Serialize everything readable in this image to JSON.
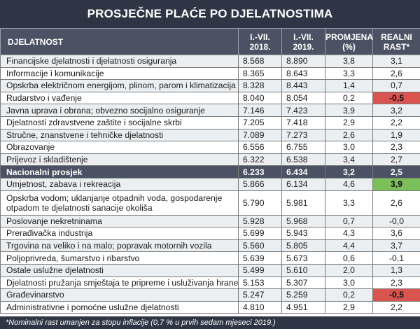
{
  "title": "PROSJEČNE PLAĆE PO DJELATNOSTIMA",
  "headers": {
    "col1": "DJELATNOST",
    "col2_l1": "I.-VII.",
    "col2_l2": "2018.",
    "col3_l1": "I.-VII.",
    "col3_l2": "2019.",
    "col4_l1": "PROMJENA",
    "col4_l2": "(%)",
    "col5_l1": "REALNI",
    "col5_l2": "RAST*"
  },
  "rows": [
    {
      "name": "Financijske djelatnosti i djelatnosti osiguranja",
      "y2018": "8.568",
      "y2019": "8.890",
      "change": "3,8",
      "real": "3,1",
      "style": "odd",
      "flag": ""
    },
    {
      "name": "Informacije i komunikacije",
      "y2018": "8.365",
      "y2019": "8.643",
      "change": "3,3",
      "real": "2,6",
      "style": "even",
      "flag": ""
    },
    {
      "name": "Opskrba električnom energijom, plinom, parom i klimatizacija",
      "y2018": "8.328",
      "y2019": "8.443",
      "change": "1,4",
      "real": "0,7",
      "style": "odd",
      "flag": ""
    },
    {
      "name": "Rudarstvo i vađenje",
      "y2018": "8.040",
      "y2019": "8.054",
      "change": "0,2",
      "real": "-0,5",
      "style": "even",
      "flag": "neg"
    },
    {
      "name": "Javna uprava i obrana; obvezno socijalno osiguranje",
      "y2018": "7.146",
      "y2019": "7.423",
      "change": "3,9",
      "real": "3,2",
      "style": "odd",
      "flag": ""
    },
    {
      "name": "Djelatnosti zdravstvene zaštite i socijalne skrbi",
      "y2018": "7.205",
      "y2019": "7.418",
      "change": "2,9",
      "real": "2,2",
      "style": "even",
      "flag": ""
    },
    {
      "name": "Stručne, znanstvene i tehničke djelatnosti",
      "y2018": "7.089",
      "y2019": "7.273",
      "change": "2,6",
      "real": "1,9",
      "style": "odd",
      "flag": ""
    },
    {
      "name": "Obrazovanje",
      "y2018": "6.556",
      "y2019": "6.755",
      "change": "3,0",
      "real": "2,3",
      "style": "even",
      "flag": ""
    },
    {
      "name": "Prijevoz i skladištenje",
      "y2018": "6.322",
      "y2019": "6.538",
      "change": "3,4",
      "real": "2,7",
      "style": "odd",
      "flag": ""
    },
    {
      "name": "Nacionalni prosjek",
      "y2018": "6.233",
      "y2019": "6.434",
      "change": "3,2",
      "real": "2,5",
      "style": "highlight",
      "flag": ""
    },
    {
      "name": "Umjetnost, zabava i rekreacija",
      "y2018": "5.866",
      "y2019": "6.134",
      "change": "4,6",
      "real": "3,9",
      "style": "odd",
      "flag": "pos"
    },
    {
      "name": "Opskrba vodom; uklanjanje otpadnih voda, gospodarenje otpadom te djelatnosti sanacije okoliša",
      "y2018": "5.790",
      "y2019": "5.981",
      "change": "3,3",
      "real": "2,6",
      "style": "even tall",
      "flag": ""
    },
    {
      "name": "Poslovanje nekretninama",
      "y2018": "5.928",
      "y2019": "5.968",
      "change": "0,7",
      "real": "-0,0",
      "style": "odd",
      "flag": ""
    },
    {
      "name": "Prerađivačka industrija",
      "y2018": "5.699",
      "y2019": "5.943",
      "change": "4,3",
      "real": "3,6",
      "style": "even",
      "flag": ""
    },
    {
      "name": "Trgovina na veliko i na malo; popravak motornih vozila",
      "y2018": "5.560",
      "y2019": "5.805",
      "change": "4,4",
      "real": "3,7",
      "style": "odd",
      "flag": ""
    },
    {
      "name": "Poljoprivreda, šumarstvo i ribarstvo",
      "y2018": "5.639",
      "y2019": "5.673",
      "change": "0,6",
      "real": "-0,1",
      "style": "even",
      "flag": ""
    },
    {
      "name": "Ostale uslužne djelatnosti",
      "y2018": "5.499",
      "y2019": "5.610",
      "change": "2,0",
      "real": "1,3",
      "style": "odd",
      "flag": ""
    },
    {
      "name": "Djelatnosti pružanja smještaja te pripreme i usluživanja hrane",
      "y2018": "5.153",
      "y2019": "5.307",
      "change": "3,0",
      "real": "2,3",
      "style": "even",
      "flag": ""
    },
    {
      "name": "Građevinarstvo",
      "y2018": "5.247",
      "y2019": "5.259",
      "change": "0,2",
      "real": "-0,5",
      "style": "odd",
      "flag": "neg"
    },
    {
      "name": "Administrativne i pomoćne uslužne djelatnosti",
      "y2018": "4.810",
      "y2019": "4.951",
      "change": "2,9",
      "real": "2,2",
      "style": "even",
      "flag": ""
    }
  ],
  "footnote": "*Nominalni rast umanjen za stopu inflacije (0,7 % u prvih sedam mjeseci 2019.)",
  "colors": {
    "header_bg": "#4a5263",
    "title_bg": "#2e3646",
    "negative": "#d9534f",
    "positive": "#7bbf5a"
  }
}
